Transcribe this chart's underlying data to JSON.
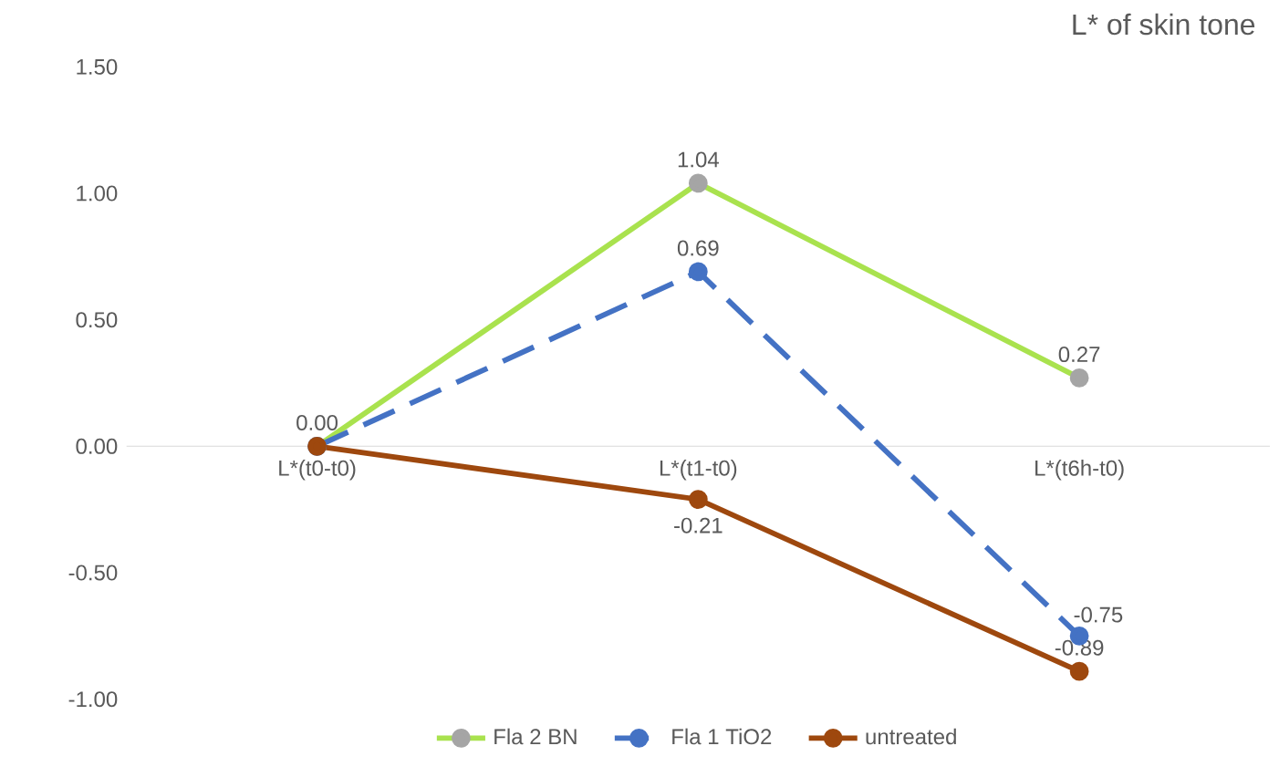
{
  "chart_data": {
    "type": "line",
    "title": "L* of skin tone",
    "categories": [
      "L*(t0-t0)",
      "L*(t1-t0)",
      "L*(t6h-t0)"
    ],
    "series": [
      {
        "name": "Fla 2 BN",
        "color": "#a9e24e",
        "colors": [
          "#a5a5a5",
          "#a5a5a5",
          "#a5a5a5"
        ],
        "line_style": "solid",
        "values": [
          0.0,
          1.04,
          0.27
        ],
        "value_labels": [
          "0.00",
          "1.04",
          "0.27"
        ]
      },
      {
        "name": "Fla 1 TiO2",
        "color": "#4472c4",
        "line_style": "dashed",
        "values": [
          0.0,
          0.69,
          -0.75
        ],
        "value_labels": [
          null,
          "0.69",
          "-0.75"
        ]
      },
      {
        "name": "untreated",
        "color": "#9e480e",
        "line_style": "solid",
        "values": [
          0.0,
          -0.21,
          -0.89
        ],
        "value_labels": [
          null,
          "-0.21",
          "-0.89"
        ]
      }
    ],
    "ylim": [
      -1.0,
      1.5
    ],
    "yticks": [
      {
        "value": -1.0,
        "label": "-1.00"
      },
      {
        "value": -0.5,
        "label": "-0.50"
      },
      {
        "value": 0.0,
        "label": "0.00"
      },
      {
        "value": 0.5,
        "label": "0.50"
      },
      {
        "value": 1.0,
        "label": "1.00"
      },
      {
        "value": 1.5,
        "label": "1.50"
      }
    ],
    "marker": "circle",
    "grid": false,
    "legend": "bottom"
  }
}
